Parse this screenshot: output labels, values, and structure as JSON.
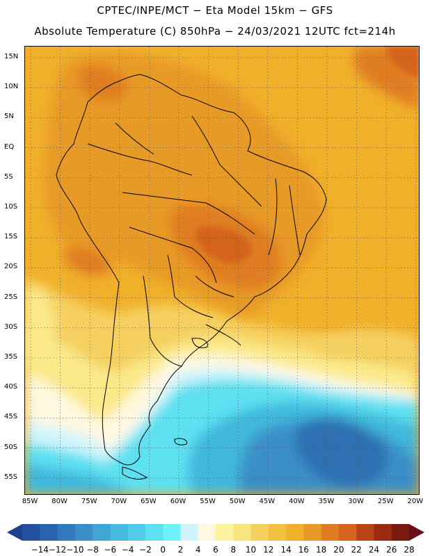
{
  "title": {
    "line1": "CPTEC/INPE/MCT −  Eta Model 15km − GFS",
    "line2": "Absolute Temperature (C) 850hPa − 24/03/2021 12UTC fct=214h"
  },
  "map": {
    "lat_labels": [
      "15N",
      "10N",
      "5N",
      "EQ",
      "5S",
      "10S",
      "15S",
      "20S",
      "25S",
      "30S",
      "35S",
      "40S",
      "45S",
      "50S",
      "55S"
    ],
    "lon_labels": [
      "85W",
      "80W",
      "75W",
      "70W",
      "65W",
      "60W",
      "55W",
      "50W",
      "45W",
      "40W",
      "35W",
      "30W",
      "25W",
      "20W"
    ],
    "colors": {
      "ocean_warm": "#f0b02a",
      "land_warm": "#e89a28",
      "hot": "#e07d24",
      "very_hot": "#d4641c",
      "mild": "#f5d060",
      "cool_yellow": "#fbe98a",
      "cream": "#fff8e0",
      "light_cyan": "#d0f4fb",
      "cyan": "#5de0f0",
      "mid_blue": "#3fb8dc",
      "blue": "#3a8fc8",
      "deep_blue": "#2f6fb2",
      "coast": "#000000"
    }
  },
  "legend": {
    "labels": [
      "−14",
      "−12",
      "−10",
      "−8",
      "−6",
      "−4",
      "−2",
      "0",
      "2",
      "4",
      "6",
      "8",
      "10",
      "12",
      "14",
      "16",
      "18",
      "20",
      "22",
      "24",
      "26",
      "28"
    ],
    "colors": [
      "#1e3f8c",
      "#2450a0",
      "#2a63b0",
      "#3278bc",
      "#3a8fc8",
      "#3fa6d4",
      "#45bade",
      "#52cde8",
      "#5de0f0",
      "#70f2f8",
      "#d0f4fb",
      "#fff8e0",
      "#fbf3a0",
      "#f8e480",
      "#f5d060",
      "#f2c040",
      "#f0b02a",
      "#e89a28",
      "#e07d24",
      "#d4641c",
      "#b84416",
      "#9a2a12",
      "#7a1a0e",
      "#6a0f1a"
    ]
  }
}
